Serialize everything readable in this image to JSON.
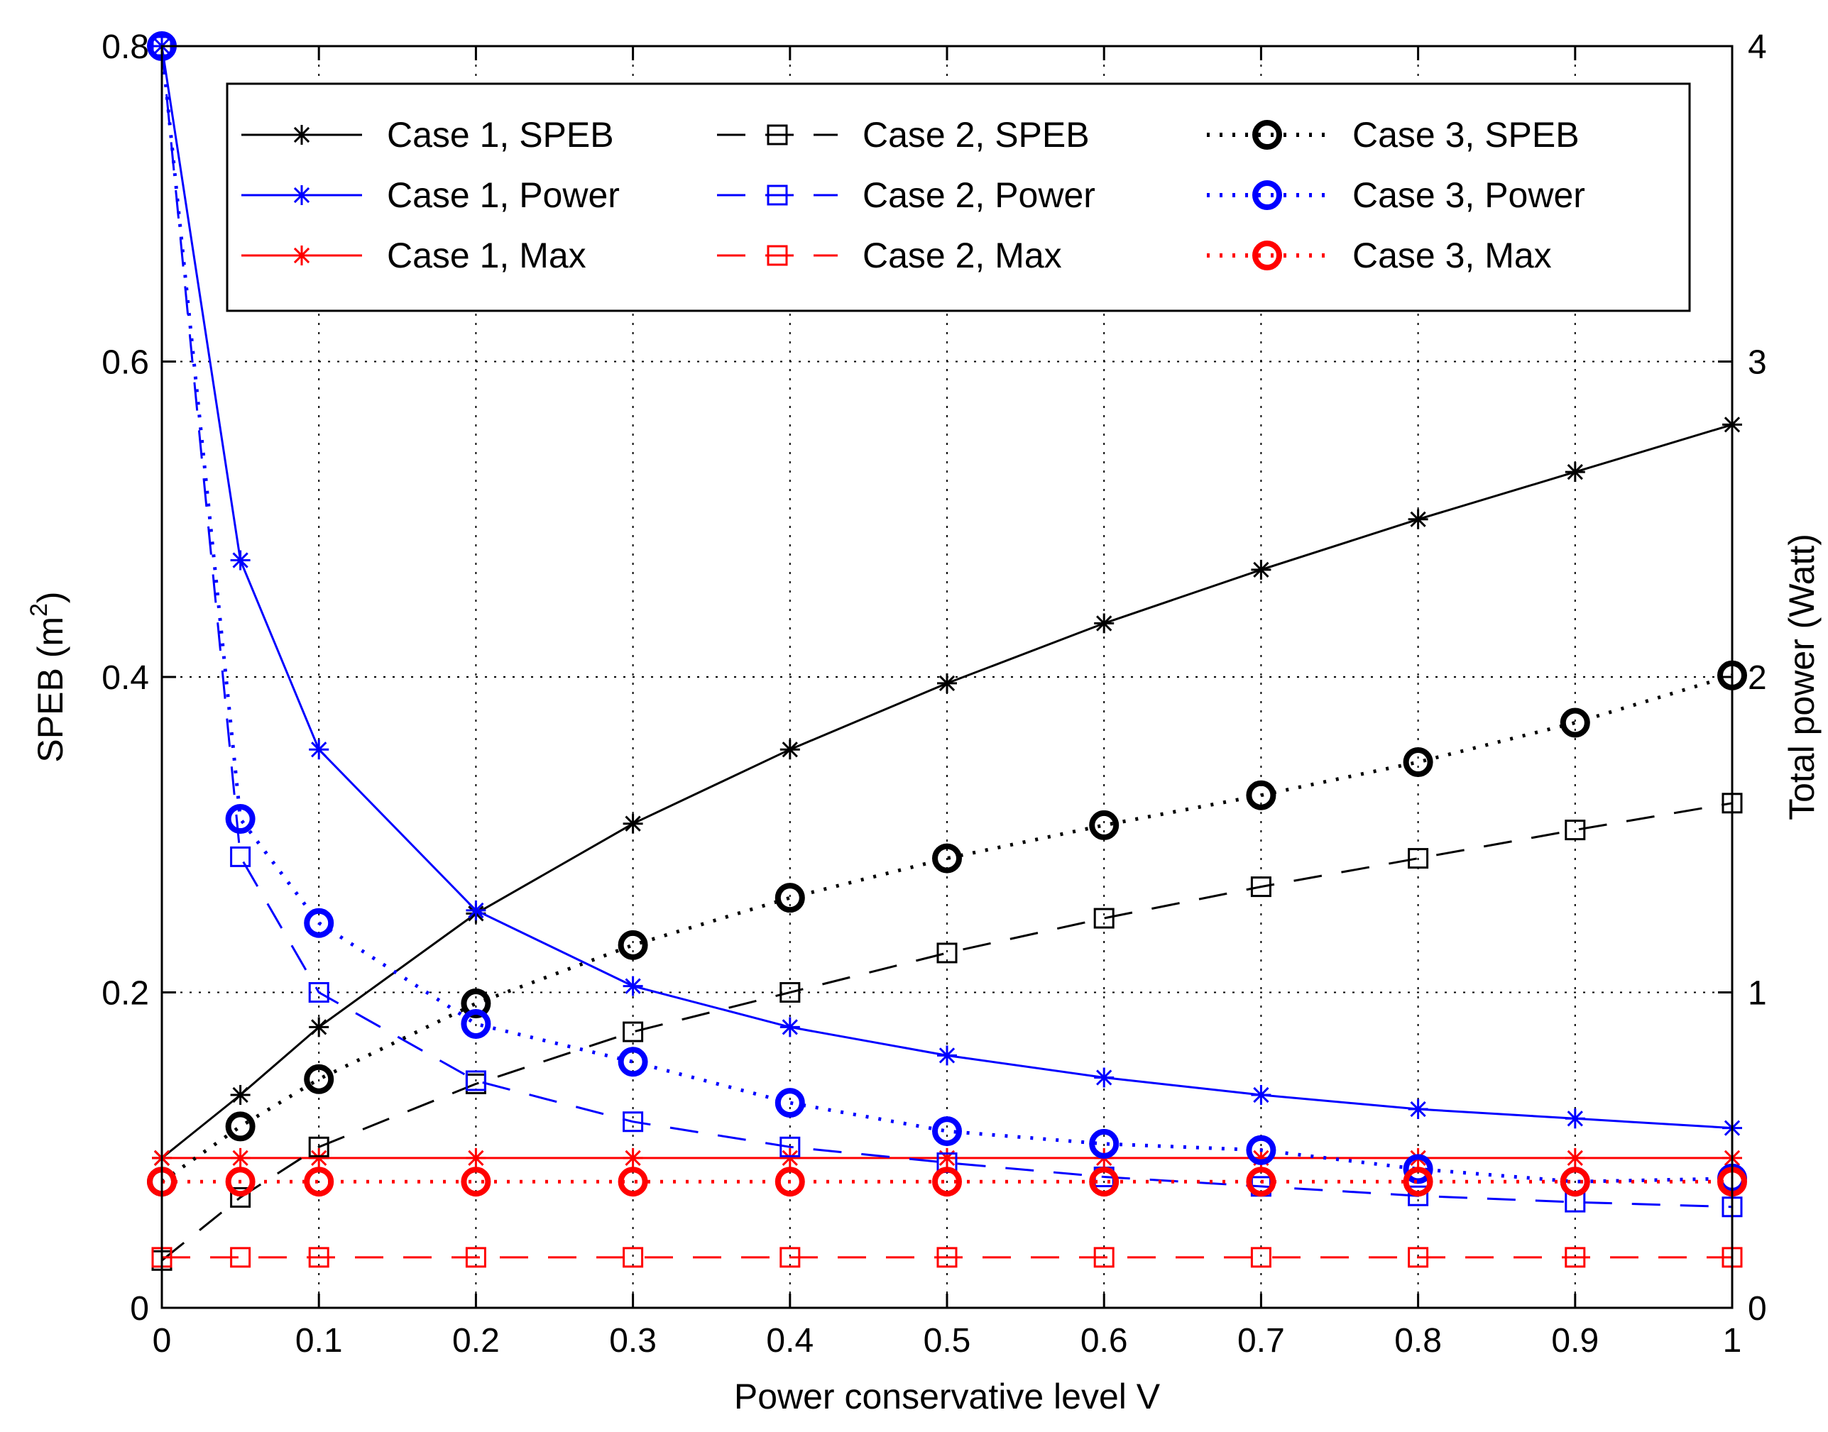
{
  "chart_data": {
    "type": "line",
    "title": "",
    "xlabel": "Power conservative level V",
    "ylabel": "SPEB (m",
    "ylabel_sup": "2",
    "ylabel_close": ")",
    "y2label": "Total power (Watt)",
    "xlim": [
      0,
      1
    ],
    "ylim": [
      0,
      0.8
    ],
    "y2lim": [
      0,
      4
    ],
    "grid": true,
    "legend_position": "top",
    "x_ticks": [
      "0",
      "0.1",
      "0.2",
      "0.3",
      "0.4",
      "0.5",
      "0.6",
      "0.7",
      "0.8",
      "0.9",
      "1"
    ],
    "y_ticks": [
      "0",
      "0.2",
      "0.4",
      "0.6",
      "0.8"
    ],
    "y2_ticks": [
      "0",
      "1",
      "2",
      "3",
      "4"
    ],
    "x": [
      0,
      0.05,
      0.1,
      0.2,
      0.3,
      0.4,
      0.5,
      0.6,
      0.7,
      0.8,
      0.9,
      1.0
    ],
    "series": [
      {
        "name": "Case 1, SPEB",
        "axis": "left",
        "color": "#000000",
        "linestyle": "solid",
        "marker": "star",
        "values": [
          0.095,
          0.135,
          0.178,
          0.25,
          0.307,
          0.354,
          0.396,
          0.434,
          0.468,
          0.5,
          0.53,
          0.56
        ]
      },
      {
        "name": "Case 1, Power",
        "axis": "right",
        "color": "#0000ff",
        "linestyle": "solid",
        "marker": "star",
        "values": [
          4.0,
          2.37,
          1.77,
          1.26,
          1.02,
          0.89,
          0.8,
          0.73,
          0.675,
          0.63,
          0.6,
          0.57
        ]
      },
      {
        "name": "Case 1, Max",
        "axis": "left",
        "color": "#ff0000",
        "linestyle": "solid",
        "marker": "star",
        "values": [
          0.095,
          0.095,
          0.095,
          0.095,
          0.095,
          0.095,
          0.095,
          0.095,
          0.095,
          0.095,
          0.095,
          0.095
        ]
      },
      {
        "name": "Case 2, SPEB",
        "axis": "left",
        "color": "#000000",
        "linestyle": "dashed",
        "marker": "square",
        "values": [
          0.03,
          0.07,
          0.102,
          0.142,
          0.175,
          0.2,
          0.225,
          0.247,
          0.267,
          0.285,
          0.303,
          0.32
        ]
      },
      {
        "name": "Case 2, Power",
        "axis": "right",
        "color": "#0000ff",
        "linestyle": "dashed",
        "marker": "square",
        "values": [
          4.0,
          1.43,
          1.0,
          0.72,
          0.59,
          0.51,
          0.46,
          0.415,
          0.385,
          0.355,
          0.335,
          0.32
        ]
      },
      {
        "name": "Case 2, Max",
        "axis": "left",
        "color": "#ff0000",
        "linestyle": "dashed",
        "marker": "square",
        "values": [
          0.032,
          0.032,
          0.032,
          0.032,
          0.032,
          0.032,
          0.032,
          0.032,
          0.032,
          0.032,
          0.032,
          0.032
        ]
      },
      {
        "name": "Case 3, SPEB",
        "axis": "left",
        "color": "#000000",
        "linestyle": "dotted",
        "marker": "circle",
        "values": [
          0.08,
          0.115,
          0.145,
          0.193,
          0.23,
          0.26,
          0.285,
          0.306,
          0.325,
          0.346,
          0.371,
          0.401
        ]
      },
      {
        "name": "Case 3, Power",
        "axis": "right",
        "color": "#0000ff",
        "linestyle": "dotted",
        "marker": "circle",
        "values": [
          4.0,
          1.55,
          1.22,
          0.9,
          0.78,
          0.65,
          0.56,
          0.52,
          0.5,
          0.44,
          0.4,
          0.41
        ]
      },
      {
        "name": "Case 3, Max",
        "axis": "left",
        "color": "#ff0000",
        "linestyle": "dotted",
        "marker": "circle",
        "values": [
          0.08,
          0.08,
          0.08,
          0.08,
          0.08,
          0.08,
          0.08,
          0.08,
          0.08,
          0.08,
          0.08,
          0.08
        ]
      }
    ]
  }
}
